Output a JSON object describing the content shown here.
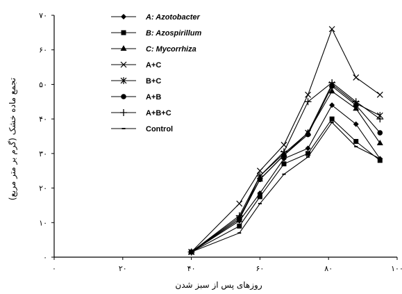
{
  "chart_data": {
    "type": "line",
    "xlabel": "روزهای پس از سبز شدن",
    "ylabel": "تجمع ماده خشک (گرم بر متر مربع)",
    "xlim": [
      0,
      100
    ],
    "ylim": [
      0,
      70
    ],
    "x_ticks": [
      0,
      20,
      40,
      60,
      80,
      100
    ],
    "x_tick_labels": [
      "۰",
      "۲۰",
      "۴۰",
      "۶۰",
      "۸۰",
      "۱۰۰"
    ],
    "y_ticks": [
      0,
      10,
      20,
      30,
      40,
      50,
      60,
      70
    ],
    "y_tick_labels": [
      "۰",
      "۱۰",
      "۲۰",
      "۳۰",
      "۴۰",
      "۵۰",
      "۶۰",
      "۷۰"
    ],
    "grid": false,
    "legend_position": "top-left",
    "x": [
      40,
      54,
      60,
      67,
      74,
      81,
      88,
      95
    ],
    "series": [
      {
        "name": "A: Azotobacter",
        "marker": "diamond",
        "italic": true,
        "values": [
          1.5,
          10.5,
          18.5,
          28.5,
          31.5,
          44,
          38.5,
          28.5
        ]
      },
      {
        "name": "B: Azospirillum",
        "marker": "square",
        "italic": true,
        "values": [
          1.5,
          9,
          17.5,
          27,
          30,
          40,
          33.5,
          28
        ]
      },
      {
        "name": "C: Mycorrhiza",
        "marker": "triangle",
        "italic": true,
        "values": [
          1.5,
          11.5,
          22.5,
          29.5,
          36,
          48,
          43,
          33
        ]
      },
      {
        "name": "A+C",
        "marker": "x",
        "italic": false,
        "values": [
          1.5,
          15.5,
          25,
          32.5,
          47,
          66,
          52,
          47
        ]
      },
      {
        "name": "B+C",
        "marker": "asterisk",
        "italic": false,
        "values": [
          1.5,
          11,
          23.5,
          30,
          36,
          50,
          44.5,
          41
        ]
      },
      {
        "name": "A+B",
        "marker": "circle",
        "italic": false,
        "values": [
          1.5,
          11,
          22.5,
          29.5,
          35.5,
          49.5,
          44,
          36
        ]
      },
      {
        "name": "A+B+C",
        "marker": "plus",
        "italic": false,
        "values": [
          1.5,
          12,
          23.5,
          30.5,
          45,
          50.5,
          45,
          40
        ]
      },
      {
        "name": "Control",
        "marker": "dash",
        "italic": false,
        "values": [
          1.5,
          7,
          15.5,
          24,
          29,
          39,
          32,
          28.5
        ]
      }
    ]
  }
}
